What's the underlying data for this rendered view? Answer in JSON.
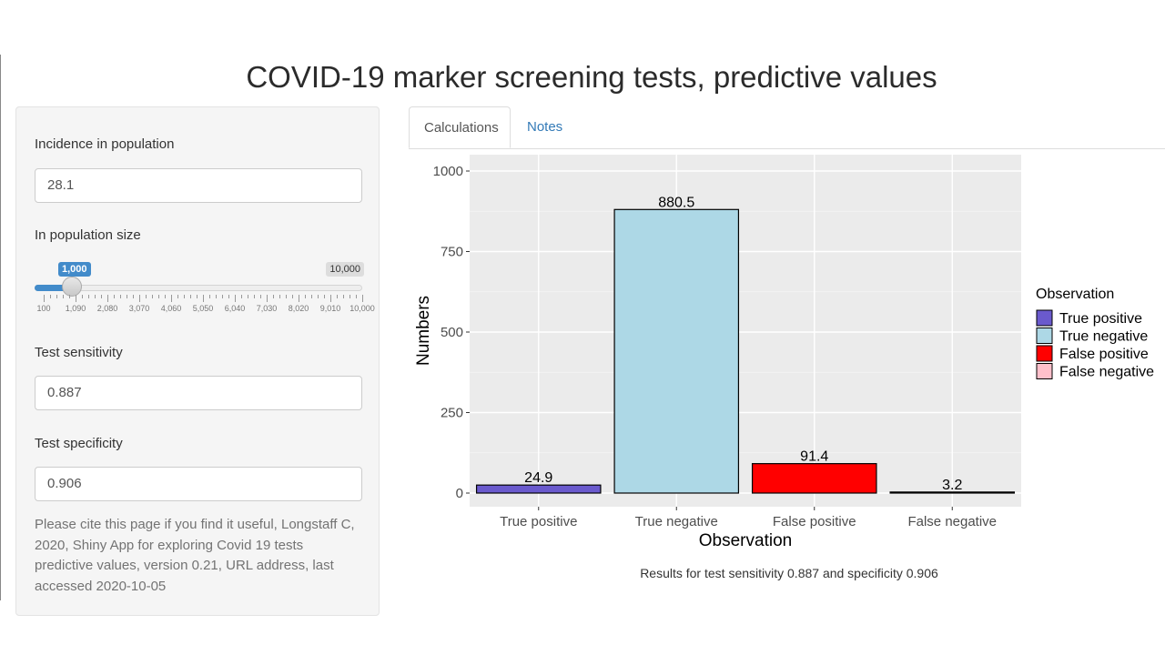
{
  "page": {
    "title": "COVID-19 marker screening tests, predictive values"
  },
  "sidebar": {
    "incidence": {
      "label": "Incidence in population",
      "value": "28.1"
    },
    "population": {
      "label": "In population size",
      "value_label": "1,000",
      "max_label": "10,000",
      "min": 100,
      "max": 10000,
      "value": 1000,
      "grid_labels": [
        "100",
        "1,090",
        "2,080",
        "3,070",
        "4,060",
        "5,050",
        "6,040",
        "7,030",
        "8,020",
        "9,010",
        "10,000"
      ]
    },
    "sensitivity": {
      "label": "Test sensitivity",
      "value": "0.887"
    },
    "specificity": {
      "label": "Test specificity",
      "value": "0.906"
    },
    "citation": "Please cite this page if you find it useful, Longstaff C, 2020, Shiny App for exploring Covid 19 tests predictive values, version 0.21, URL address, last accessed 2020-10-05"
  },
  "tabs": [
    {
      "label": "Calculations",
      "active": true
    },
    {
      "label": "Notes",
      "active": false
    }
  ],
  "chart_data": {
    "type": "bar",
    "categories": [
      "True positive",
      "True negative",
      "False positive",
      "False negative"
    ],
    "values": [
      24.9,
      880.5,
      91.4,
      3.2
    ],
    "data_labels": [
      "24.9",
      "880.5",
      "91.4",
      "3.2"
    ],
    "colors": [
      "#6a5acd",
      "#add8e6",
      "#ff0000",
      "#ffc0cb"
    ],
    "xlabel": "Observation",
    "ylabel": "Numbers",
    "ylim": [
      0,
      1000
    ],
    "yticks": [
      0,
      250,
      500,
      750,
      1000
    ],
    "ytick_labels": [
      "0",
      "250",
      "500",
      "750",
      "1000"
    ],
    "legend": {
      "title": "Observation",
      "placement": "right",
      "entries": [
        "True positive",
        "True negative",
        "False positive",
        "False negative"
      ]
    },
    "grid": true,
    "panel_background": "#ebebeb"
  },
  "caption": "Results for test sensitivity 0.887 and specificity 0.906"
}
